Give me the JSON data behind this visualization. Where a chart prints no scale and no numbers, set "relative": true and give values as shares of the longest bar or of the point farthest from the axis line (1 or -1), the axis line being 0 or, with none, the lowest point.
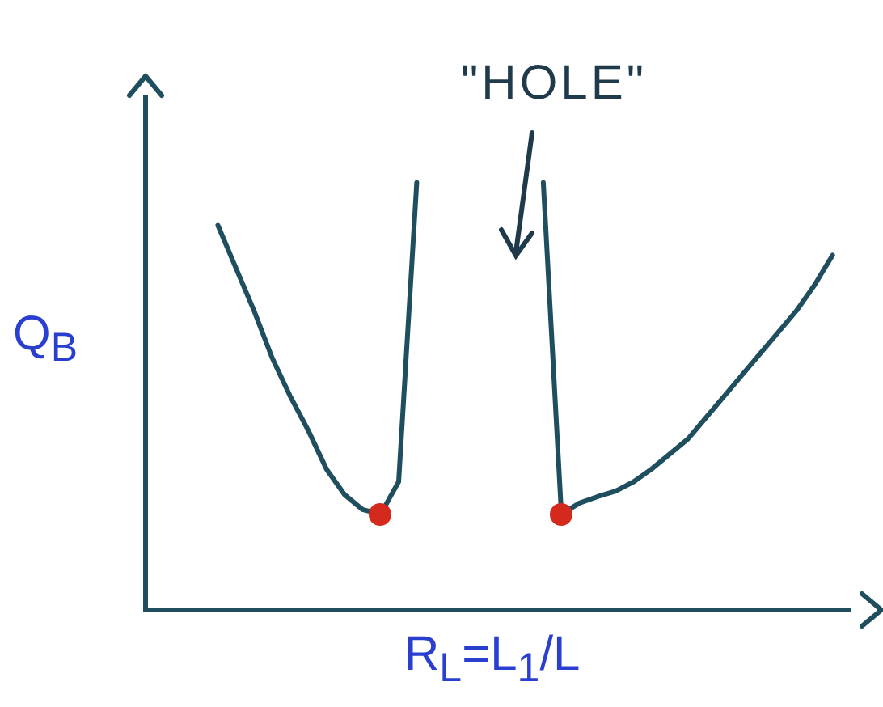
{
  "chart_data": {
    "type": "line",
    "relative": true,
    "xlabel": "R$_{L}$=L$_{1}$/L",
    "ylabel": "Q$_{B}$",
    "annotations": [
      "\"HOLE\""
    ],
    "categories": [
      null,
      null,
      null,
      null,
      null,
      null,
      null,
      null,
      null,
      null,
      null,
      null,
      null,
      null,
      null,
      null,
      null,
      null,
      null,
      null,
      null,
      null,
      null,
      null,
      null,
      null,
      null,
      null,
      null,
      null,
      null,
      null,
      null,
      null,
      null,
      null,
      null,
      null,
      null,
      null
    ],
    "series": [
      {
        "color": "#1f4e5f",
        "values": [
          null,
          null,
          null,
          null,
          0.9,
          0.8,
          0.7,
          0.59,
          0.5,
          0.42,
          0.33,
          0.27,
          0.235,
          0.224,
          0.3,
          1.0,
          null,
          null,
          null,
          null,
          null,
          null,
          null,
          null,
          null,
          null,
          null,
          null,
          null,
          null,
          null,
          null,
          null,
          null,
          null,
          null,
          null,
          null,
          null,
          null
        ]
      },
      {
        "color": "#1f4e5f",
        "values": [
          null,
          null,
          null,
          null,
          null,
          null,
          null,
          null,
          null,
          null,
          null,
          null,
          null,
          null,
          null,
          null,
          null,
          null,
          null,
          null,
          null,
          null,
          1.0,
          0.224,
          0.25,
          0.265,
          0.278,
          0.3,
          0.33,
          0.365,
          0.4,
          0.45,
          0.5,
          0.55,
          0.6,
          0.65,
          0.7,
          0.76,
          0.83,
          null
        ]
      }
    ]
  }
}
